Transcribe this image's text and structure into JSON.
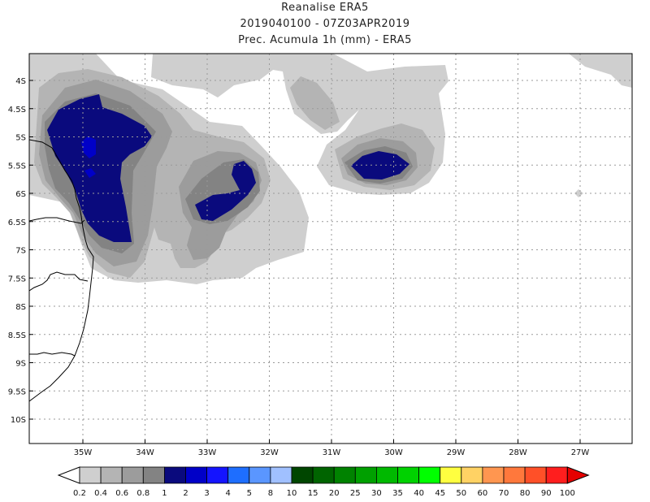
{
  "header": {
    "title": "Reanalise ERA5",
    "subtitle": "2019040100 - 07Z03APR2019",
    "variable": "Prec. Acumula 1h (mm) - ERA5"
  },
  "axes": {
    "lat_labels": [
      "4S",
      "4.5S",
      "5S",
      "5.5S",
      "6S",
      "6.5S",
      "7S",
      "7.5S",
      "8S",
      "8.5S",
      "9S",
      "9.5S",
      "10S"
    ],
    "lon_labels": [
      "35W",
      "34W",
      "33W",
      "32W",
      "31W",
      "30W",
      "29W",
      "28W",
      "27W"
    ]
  },
  "colorbar": {
    "labels": [
      "0.2",
      "0.4",
      "0.6",
      "0.8",
      "1",
      "2",
      "3",
      "4",
      "5",
      "8",
      "10",
      "15",
      "20",
      "25",
      "30",
      "35",
      "40",
      "45",
      "50",
      "60",
      "70",
      "80",
      "90",
      "100"
    ],
    "colors": [
      "#ffffff",
      "#cfcfcf",
      "#b4b4b4",
      "#9c9c9c",
      "#838383",
      "#0a0a7d",
      "#0000c8",
      "#1414ff",
      "#1e6eff",
      "#5a96ff",
      "#a0c0ff",
      "#004600",
      "#006400",
      "#008200",
      "#00a000",
      "#00b900",
      "#00d200",
      "#00ff00",
      "#ffff40",
      "#ffd264",
      "#ff9650",
      "#ff783c",
      "#ff5028",
      "#ff1e1e",
      "#e60000"
    ]
  },
  "map": {
    "contour_colors": {
      "lvl1": "#cfcfcf",
      "lvl2": "#b4b4b4",
      "lvl3": "#9c9c9c",
      "lvl4": "#838383",
      "lvl5": "#0a0a7d",
      "lvl6": "#0000c8"
    },
    "coast_color": "#000000",
    "grid_color": "#9a9a9a"
  }
}
